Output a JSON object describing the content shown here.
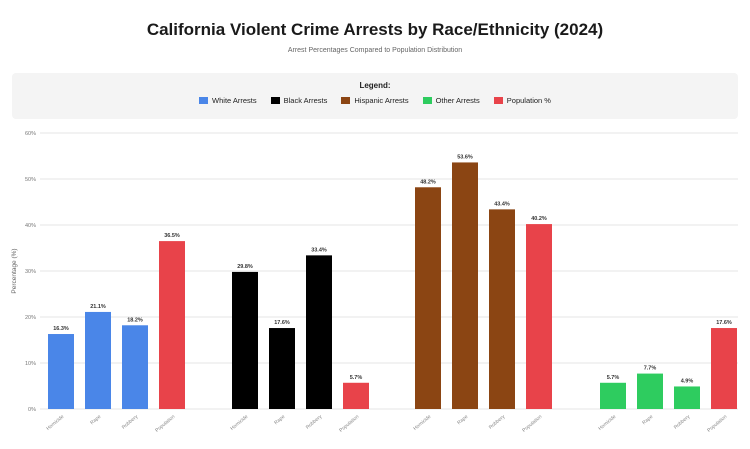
{
  "chart_data": {
    "type": "bar",
    "title": "California Violent Crime Arrests by Race/Ethnicity (2024)",
    "subtitle": "Arrest Percentages Compared to Population Distribution",
    "legend_title": "Legend:",
    "legend_position": "top",
    "ylabel": "Percentage (%)",
    "xlabel": "",
    "ylim": [
      0,
      60
    ],
    "yticks": [
      0,
      10,
      20,
      30,
      40,
      50,
      60
    ],
    "ytick_labels": [
      "0%",
      "10%",
      "20%",
      "30%",
      "40%",
      "50%",
      "60%"
    ],
    "grid": true,
    "categories": [
      "Homicide",
      "Rape",
      "Robbery",
      "Population"
    ],
    "groups": [
      {
        "name": "White Arrests",
        "color": "#4a86e8",
        "values": [
          16.3,
          21.1,
          18.2
        ],
        "value_labels": [
          "16.3%",
          "21.1%",
          "18.2%"
        ]
      },
      {
        "name": "Black Arrests",
        "color": "#000000",
        "values": [
          29.8,
          17.6,
          33.4
        ],
        "value_labels": [
          "29.8%",
          "17.6%",
          "33.4%"
        ]
      },
      {
        "name": "Hispanic Arrests",
        "color": "#8b4513",
        "values": [
          48.2,
          53.6,
          43.4
        ],
        "value_labels": [
          "48.2%",
          "53.6%",
          "43.4%"
        ]
      },
      {
        "name": "Other Arrests",
        "color": "#2ecc5f",
        "values": [
          5.7,
          7.7,
          4.9
        ],
        "value_labels": [
          "5.7%",
          "7.7%",
          "4.9%"
        ]
      }
    ],
    "population": {
      "name": "Population %",
      "color": "#e8434a",
      "values": [
        36.5,
        5.7,
        40.2,
        17.6
      ],
      "value_labels": [
        "36.5%",
        "5.7%",
        "40.2%",
        "17.6%"
      ]
    }
  }
}
